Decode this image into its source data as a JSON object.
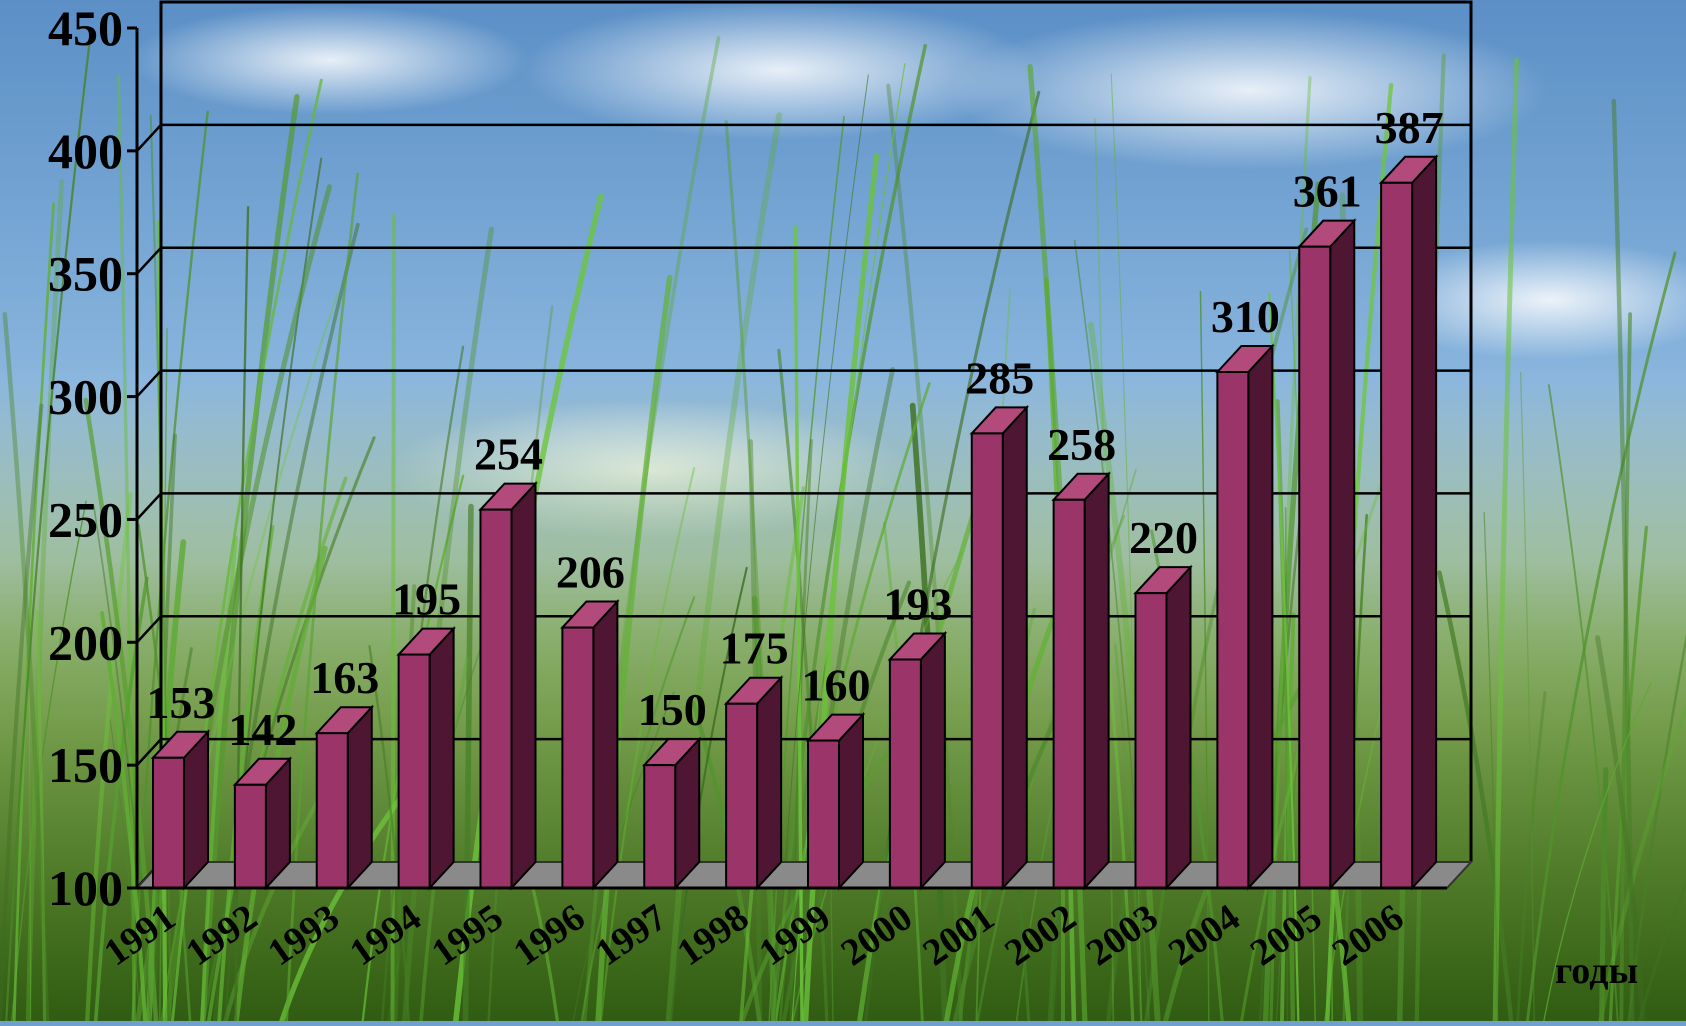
{
  "chart_data": {
    "type": "bar",
    "title": "",
    "xlabel": "годы",
    "ylabel": "",
    "categories": [
      "1991",
      "1992",
      "1993",
      "1994",
      "1995",
      "1996",
      "1997",
      "1998",
      "1999",
      "2000",
      "2001",
      "2002",
      "2003",
      "2004",
      "2005",
      "2006"
    ],
    "series": [
      {
        "values": [
          153,
          142,
          163,
          195,
          254,
          206,
          150,
          175,
          160,
          193,
          285,
          258,
          220,
          310,
          361,
          387
        ]
      }
    ],
    "data_labels": [
      "153",
      "142",
      "163",
      "195",
      "254",
      "206",
      "150",
      "175",
      "160",
      "193",
      "285",
      "258",
      "220",
      "310",
      "361",
      "387"
    ],
    "yticks": [
      "100",
      "150",
      "200",
      "250",
      "300",
      "350",
      "400",
      "450"
    ],
    "ylim": [
      100,
      450
    ],
    "grid": true,
    "legend": "none",
    "style": "3d-columns",
    "colors": {
      "bar_front": "#9b3468",
      "bar_side": "#4e1632",
      "bar_top": "#b24a7c",
      "floor": "#8a8a8a",
      "gridline": "#000000"
    }
  }
}
